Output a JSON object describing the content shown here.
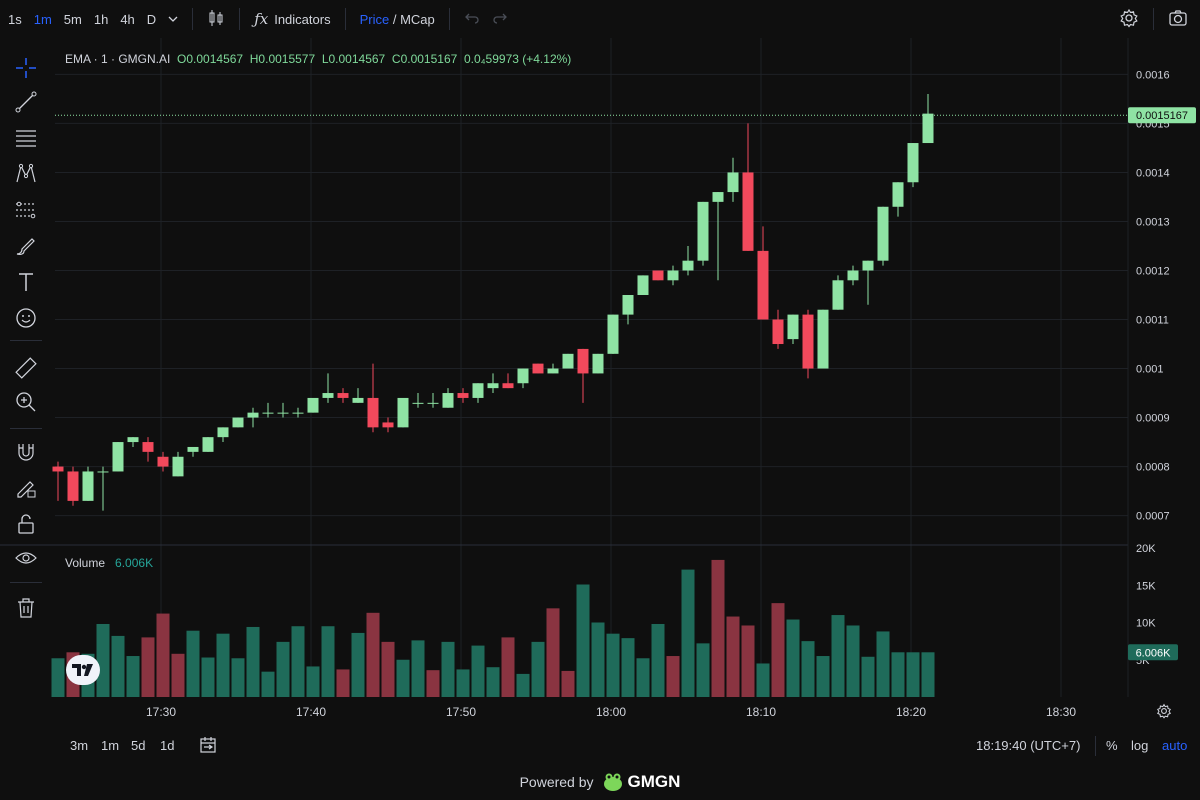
{
  "colors": {
    "up": "#8fe3a4",
    "down": "#f2495c",
    "vol_up": "#1f6b5a",
    "vol_down": "#8a3441",
    "accent": "#2962ff",
    "bg": "#0f0f0f",
    "grid": "#1e2126"
  },
  "topbar": {
    "intervals": [
      "1s",
      "1m",
      "5m",
      "1h",
      "4h",
      "D"
    ],
    "active_interval": "1m",
    "indicators_label": "Indicators",
    "price_label": "Price",
    "slash": "/",
    "mcap_label": "MCap"
  },
  "legend": {
    "title": "EMA · 1 · GMGN.AI",
    "open": "O0.0014567",
    "high": "H0.0015577",
    "low": "L0.0014567",
    "close": "C0.0015167",
    "change": "0.0₄59973 (+4.12%)"
  },
  "volume_legend": {
    "label": "Volume",
    "value": "6.006K"
  },
  "price_axis": [
    "0.0016",
    "0.0015",
    "0.0014",
    "0.0013",
    "0.0012",
    "0.0011",
    "0.001",
    "0.0009",
    "0.0008",
    "0.0007"
  ],
  "volume_axis": [
    "20K",
    "15K",
    "10K",
    "5K"
  ],
  "last_price_tag": "0.0015167",
  "volume_tag": "6.006K",
  "time_axis": [
    "17:30",
    "17:40",
    "17:50",
    "18:00",
    "18:10",
    "18:20",
    "18:30"
  ],
  "bottombar": {
    "ranges": [
      "3m",
      "1m",
      "5d",
      "1d"
    ],
    "clock": "18:19:40 (UTC+7)",
    "percent_label": "%",
    "log_label": "log",
    "auto_label": "auto"
  },
  "footer": {
    "powered_by": "Powered by",
    "brand": "GMGN"
  },
  "chart_data": {
    "type": "candlestick",
    "series": [
      {
        "o": 0.0008,
        "h": 0.00081,
        "l": 0.00073,
        "c": 0.00079
      },
      {
        "o": 0.00079,
        "h": 0.0008,
        "l": 0.00072,
        "c": 0.00073
      },
      {
        "o": 0.00073,
        "h": 0.0008,
        "l": 0.00073,
        "c": 0.00079
      },
      {
        "o": 0.00079,
        "h": 0.0008,
        "l": 0.00071,
        "c": 0.00079
      },
      {
        "o": 0.00079,
        "h": 0.00085,
        "l": 0.00079,
        "c": 0.00085
      },
      {
        "o": 0.00085,
        "h": 0.00086,
        "l": 0.00084,
        "c": 0.00086
      },
      {
        "o": 0.00085,
        "h": 0.00086,
        "l": 0.00081,
        "c": 0.00083
      },
      {
        "o": 0.00082,
        "h": 0.00083,
        "l": 0.00079,
        "c": 0.0008
      },
      {
        "o": 0.00078,
        "h": 0.00083,
        "l": 0.00078,
        "c": 0.00082
      },
      {
        "o": 0.00083,
        "h": 0.00084,
        "l": 0.00082,
        "c": 0.00084
      },
      {
        "o": 0.00083,
        "h": 0.00086,
        "l": 0.00083,
        "c": 0.00086
      },
      {
        "o": 0.00086,
        "h": 0.00088,
        "l": 0.00085,
        "c": 0.00088
      },
      {
        "o": 0.00088,
        "h": 0.0009,
        "l": 0.00088,
        "c": 0.0009
      },
      {
        "o": 0.0009,
        "h": 0.00092,
        "l": 0.00088,
        "c": 0.00091
      },
      {
        "o": 0.00091,
        "h": 0.00093,
        "l": 0.0009,
        "c": 0.00091
      },
      {
        "o": 0.00091,
        "h": 0.00093,
        "l": 0.0009,
        "c": 0.00091
      },
      {
        "o": 0.00091,
        "h": 0.00092,
        "l": 0.0009,
        "c": 0.00091
      },
      {
        "o": 0.00091,
        "h": 0.00094,
        "l": 0.00091,
        "c": 0.00094
      },
      {
        "o": 0.00094,
        "h": 0.00099,
        "l": 0.00093,
        "c": 0.00095
      },
      {
        "o": 0.00095,
        "h": 0.00096,
        "l": 0.00093,
        "c": 0.00094
      },
      {
        "o": 0.00093,
        "h": 0.00096,
        "l": 0.00093,
        "c": 0.00094
      },
      {
        "o": 0.00094,
        "h": 0.00101,
        "l": 0.00087,
        "c": 0.00088
      },
      {
        "o": 0.00089,
        "h": 0.0009,
        "l": 0.00087,
        "c": 0.00088
      },
      {
        "o": 0.00088,
        "h": 0.00094,
        "l": 0.00088,
        "c": 0.00094
      },
      {
        "o": 0.00093,
        "h": 0.00095,
        "l": 0.00092,
        "c": 0.00093
      },
      {
        "o": 0.00093,
        "h": 0.00095,
        "l": 0.00092,
        "c": 0.00093
      },
      {
        "o": 0.00092,
        "h": 0.00096,
        "l": 0.00092,
        "c": 0.00095
      },
      {
        "o": 0.00095,
        "h": 0.00096,
        "l": 0.00093,
        "c": 0.00094
      },
      {
        "o": 0.00094,
        "h": 0.00097,
        "l": 0.00093,
        "c": 0.00097
      },
      {
        "o": 0.00096,
        "h": 0.00099,
        "l": 0.00095,
        "c": 0.00097
      },
      {
        "o": 0.00097,
        "h": 0.00099,
        "l": 0.00096,
        "c": 0.00096
      },
      {
        "o": 0.00097,
        "h": 0.001,
        "l": 0.00096,
        "c": 0.001
      },
      {
        "o": 0.00101,
        "h": 0.00101,
        "l": 0.00099,
        "c": 0.00099
      },
      {
        "o": 0.00099,
        "h": 0.00101,
        "l": 0.00099,
        "c": 0.001
      },
      {
        "o": 0.001,
        "h": 0.00103,
        "l": 0.001,
        "c": 0.00103
      },
      {
        "o": 0.00104,
        "h": 0.00104,
        "l": 0.00093,
        "c": 0.00099
      },
      {
        "o": 0.00099,
        "h": 0.00103,
        "l": 0.00099,
        "c": 0.00103
      },
      {
        "o": 0.00103,
        "h": 0.00111,
        "l": 0.00103,
        "c": 0.00111
      },
      {
        "o": 0.00111,
        "h": 0.00115,
        "l": 0.00109,
        "c": 0.00115
      },
      {
        "o": 0.00115,
        "h": 0.00119,
        "l": 0.00115,
        "c": 0.00119
      },
      {
        "o": 0.0012,
        "h": 0.0012,
        "l": 0.00118,
        "c": 0.00118
      },
      {
        "o": 0.00118,
        "h": 0.00121,
        "l": 0.00117,
        "c": 0.0012
      },
      {
        "o": 0.0012,
        "h": 0.00125,
        "l": 0.00119,
        "c": 0.00122
      },
      {
        "o": 0.00122,
        "h": 0.00134,
        "l": 0.00121,
        "c": 0.00134
      },
      {
        "o": 0.00134,
        "h": 0.00136,
        "l": 0.00118,
        "c": 0.00136
      },
      {
        "o": 0.00136,
        "h": 0.00143,
        "l": 0.00134,
        "c": 0.0014
      },
      {
        "o": 0.0014,
        "h": 0.0015,
        "l": 0.00124,
        "c": 0.00124
      },
      {
        "o": 0.00124,
        "h": 0.00129,
        "l": 0.0011,
        "c": 0.0011
      },
      {
        "o": 0.0011,
        "h": 0.00112,
        "l": 0.00104,
        "c": 0.00105
      },
      {
        "o": 0.00106,
        "h": 0.00111,
        "l": 0.00105,
        "c": 0.00111
      },
      {
        "o": 0.00111,
        "h": 0.00112,
        "l": 0.00098,
        "c": 0.001
      },
      {
        "o": 0.001,
        "h": 0.00112,
        "l": 0.001,
        "c": 0.00112
      },
      {
        "o": 0.00112,
        "h": 0.00119,
        "l": 0.00112,
        "c": 0.00118
      },
      {
        "o": 0.00118,
        "h": 0.00121,
        "l": 0.00117,
        "c": 0.0012
      },
      {
        "o": 0.0012,
        "h": 0.00122,
        "l": 0.00113,
        "c": 0.00122
      },
      {
        "o": 0.00122,
        "h": 0.00133,
        "l": 0.00121,
        "c": 0.00133
      },
      {
        "o": 0.00133,
        "h": 0.00138,
        "l": 0.00131,
        "c": 0.00138
      },
      {
        "o": 0.00138,
        "h": 0.00146,
        "l": 0.00137,
        "c": 0.00146
      },
      {
        "o": 0.00146,
        "h": 0.00156,
        "l": 0.00146,
        "c": 0.00152
      }
    ],
    "volume": [
      {
        "v": 5.2,
        "up": true
      },
      {
        "v": 6.0,
        "up": false
      },
      {
        "v": 5.8,
        "up": true
      },
      {
        "v": 9.8,
        "up": true
      },
      {
        "v": 8.2,
        "up": true
      },
      {
        "v": 5.5,
        "up": true
      },
      {
        "v": 8.0,
        "up": false
      },
      {
        "v": 11.2,
        "up": false
      },
      {
        "v": 5.8,
        "up": false
      },
      {
        "v": 8.9,
        "up": true
      },
      {
        "v": 5.3,
        "up": true
      },
      {
        "v": 8.5,
        "up": true
      },
      {
        "v": 5.2,
        "up": true
      },
      {
        "v": 9.4,
        "up": true
      },
      {
        "v": 3.4,
        "up": true
      },
      {
        "v": 7.4,
        "up": true
      },
      {
        "v": 9.5,
        "up": true
      },
      {
        "v": 4.1,
        "up": true
      },
      {
        "v": 9.5,
        "up": true
      },
      {
        "v": 3.7,
        "up": false
      },
      {
        "v": 8.6,
        "up": true
      },
      {
        "v": 11.3,
        "up": false
      },
      {
        "v": 7.4,
        "up": false
      },
      {
        "v": 5.0,
        "up": true
      },
      {
        "v": 7.6,
        "up": true
      },
      {
        "v": 3.6,
        "up": false
      },
      {
        "v": 7.4,
        "up": true
      },
      {
        "v": 3.7,
        "up": true
      },
      {
        "v": 6.9,
        "up": true
      },
      {
        "v": 4.0,
        "up": true
      },
      {
        "v": 8.0,
        "up": false
      },
      {
        "v": 3.1,
        "up": true
      },
      {
        "v": 7.4,
        "up": true
      },
      {
        "v": 11.9,
        "up": false
      },
      {
        "v": 3.5,
        "up": false
      },
      {
        "v": 15.1,
        "up": true
      },
      {
        "v": 10.0,
        "up": true
      },
      {
        "v": 8.5,
        "up": true
      },
      {
        "v": 7.9,
        "up": true
      },
      {
        "v": 5.2,
        "up": true
      },
      {
        "v": 9.8,
        "up": true
      },
      {
        "v": 5.5,
        "up": false
      },
      {
        "v": 17.1,
        "up": true
      },
      {
        "v": 7.2,
        "up": true
      },
      {
        "v": 18.4,
        "up": false
      },
      {
        "v": 10.8,
        "up": false
      },
      {
        "v": 9.6,
        "up": false
      },
      {
        "v": 4.5,
        "up": true
      },
      {
        "v": 12.6,
        "up": false
      },
      {
        "v": 10.4,
        "up": true
      },
      {
        "v": 7.5,
        "up": true
      },
      {
        "v": 5.5,
        "up": true
      },
      {
        "v": 11.0,
        "up": true
      },
      {
        "v": 9.6,
        "up": true
      },
      {
        "v": 5.4,
        "up": true
      },
      {
        "v": 8.8,
        "up": true
      },
      {
        "v": 6.0,
        "up": true
      },
      {
        "v": 6.0,
        "up": true
      },
      {
        "v": 6.0,
        "up": true
      }
    ],
    "y_range": [
      0.00064,
      0.00166
    ],
    "volume_range": [
      0,
      20
    ]
  }
}
